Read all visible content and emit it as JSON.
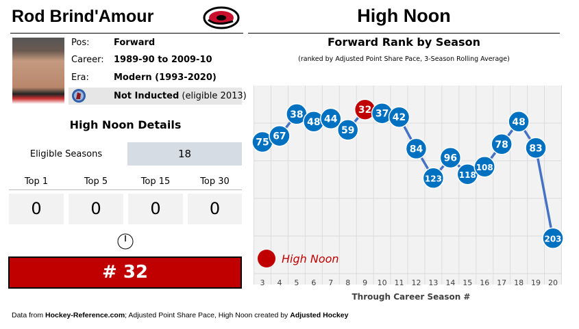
{
  "player": {
    "name": "Rod Brind'Amour",
    "pos_label": "Pos:",
    "pos": "Forward",
    "career_label": "Career:",
    "career": "1989-90 to 2009-10",
    "era_label": "Era:",
    "era": "Modern (1993-2020)",
    "hof_status": "Not Inducted",
    "hof_note": "(eligible 2013)"
  },
  "details": {
    "title": "High Noon Details",
    "eligible_label": "Eligible Seasons",
    "eligible_value": "18",
    "tops": [
      {
        "label": "Top 1",
        "value": "0"
      },
      {
        "label": "Top 5",
        "value": "0"
      },
      {
        "label": "Top 15",
        "value": "0"
      },
      {
        "label": "Top 30",
        "value": "0"
      }
    ],
    "high_noon_rank": "# 32"
  },
  "header": {
    "title": "High Noon"
  },
  "footer": {
    "prefix": "Data from ",
    "source": "Hockey-Reference.com",
    "middle": "; Adjusted Point Share Pace, High Noon created by ",
    "creator": "Adjusted Hockey"
  },
  "colors": {
    "accent": "#c00000",
    "point": "#0070c0",
    "line": "#4472c4",
    "panel": "#f2f2f2"
  },
  "chart_data": {
    "type": "line",
    "title": "Forward Rank by Season",
    "subtitle": "(ranked by Adjusted Point Share Pace, 3-Season Rolling Average)",
    "xlabel": "Through Career Season #",
    "ylabel": "",
    "x": [
      3,
      4,
      5,
      6,
      7,
      8,
      9,
      10,
      11,
      12,
      13,
      14,
      15,
      16,
      17,
      18,
      19,
      20
    ],
    "values": [
      75,
      67,
      38,
      48,
      44,
      59,
      32,
      37,
      42,
      84,
      123,
      96,
      118,
      108,
      78,
      48,
      83,
      203
    ],
    "highlight_x": 9,
    "ylim": [
      0,
      250
    ],
    "y_inverted": true,
    "grid": true,
    "legend": {
      "label": "High Noon",
      "placement": "bottom-left"
    }
  }
}
